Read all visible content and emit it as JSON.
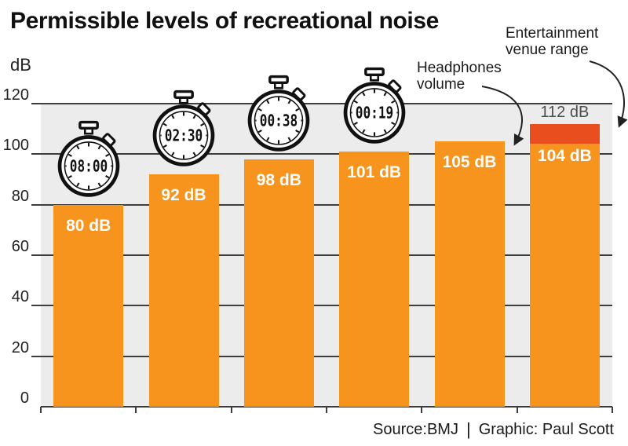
{
  "title": "Permissible levels of recreational noise",
  "y_axis": {
    "unit_label": "dB",
    "ticks": [
      0,
      20,
      40,
      60,
      80,
      100,
      120
    ]
  },
  "chart_data": {
    "type": "bar",
    "title": "Permissible levels of recreational noise",
    "xlabel": "",
    "ylabel": "dB",
    "ylim": [
      0,
      120
    ],
    "grid": true,
    "gridlines": [
      20,
      40,
      60,
      80,
      100,
      120
    ],
    "bars": [
      {
        "value": 80,
        "label": "80 dB",
        "time": "08:00"
      },
      {
        "value": 92,
        "label": "92 dB",
        "time": "02:30"
      },
      {
        "value": 98,
        "label": "98 dB",
        "time": "00:38"
      },
      {
        "value": 101,
        "label": "101 dB",
        "time": "00:19"
      },
      {
        "value": 105,
        "label": "105 dB",
        "time": null
      },
      {
        "value": 104,
        "label": "104 dB",
        "time": null,
        "range_top": 112,
        "range_top_label": "112 dB"
      }
    ]
  },
  "annotations": {
    "headphones": {
      "line1": "Headphones",
      "line2": "volume"
    },
    "venue": {
      "line1": "Entertainment",
      "line2": "venue range"
    }
  },
  "source": {
    "label": "Source:BMJ",
    "divider": "|",
    "credit": "Graphic: Paul Scott"
  },
  "icons": {
    "stopwatch": "stopwatch-icon"
  },
  "colors": {
    "bar": "#F6941E",
    "range_segment": "#E94E1E",
    "plot_background": "#ECECEC",
    "gridline": "#3d3d3d",
    "bar_label": "#FFFFFF",
    "range_label": "#4d4d4d",
    "text": "#1a1a1a"
  }
}
